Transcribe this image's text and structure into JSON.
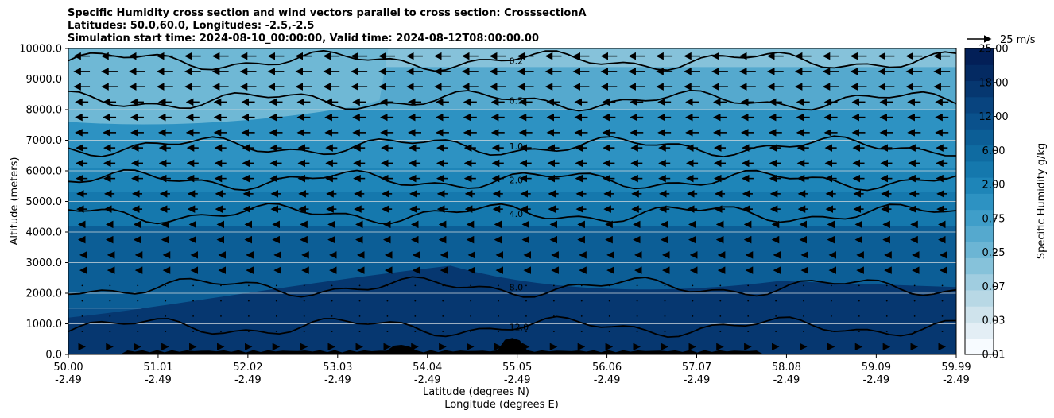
{
  "chart_data": {
    "type": "heatmap",
    "title_lines": [
      "Specific Humidity cross section and wind vectors parallel to cross section: CrosssectionA",
      "Latitudes: 50.0,60.0, Longitudes: -2.5,-2.5",
      "Simulation start time: 2024-08-10_00:00:00, Valid time: 2024-08-12T08:00:00.00"
    ],
    "xlabel_lines": [
      "Latitude (degrees N)",
      "Longitude (degrees E)"
    ],
    "ylabel": "Altitude (meters)",
    "x_latitudes": [
      "50.00",
      "51.01",
      "52.02",
      "53.03",
      "54.04",
      "55.05",
      "56.06",
      "57.07",
      "58.08",
      "59.09",
      "59.99"
    ],
    "x_longitudes": [
      "-2.49",
      "-2.49",
      "-2.49",
      "-2.49",
      "-2.49",
      "-2.49",
      "-2.49",
      "-2.49",
      "-2.49",
      "-2.49",
      "-2.49"
    ],
    "y_ticks": [
      "0.0",
      "1000.0",
      "2000.0",
      "3000.0",
      "4000.0",
      "5000.0",
      "6000.0",
      "7000.0",
      "8000.0",
      "9000.0",
      "10000.0"
    ],
    "ylim": [
      0,
      10000
    ],
    "xlim": [
      50.0,
      59.99
    ],
    "grid": "horizontal",
    "colorbar": {
      "label": "Specific Humidity g/kg",
      "tick_labels": [
        "0.01",
        "0.03",
        "0.07",
        "0.25",
        "0.75",
        "2.00",
        "6.00",
        "12.00",
        "18.00",
        "25.00"
      ],
      "levels": [
        "0.01",
        "0.02",
        "0.03",
        "0.05",
        "0.07",
        "0.1",
        "0.25",
        "0.5",
        "0.75",
        "1.0",
        "2.0",
        "4.0",
        "6.0",
        "8.0",
        "12.0",
        "14.0",
        "18.0",
        "20.0",
        "25.0"
      ],
      "colors": [
        "#f7fbff",
        "#e3eef5",
        "#cfe3ec",
        "#b8d8e5",
        "#a0cde0",
        "#86c2da",
        "#6cb5d4",
        "#55a9ce",
        "#3f9ec9",
        "#2d92c2",
        "#1e85b8",
        "#1578ad",
        "#0f6ba1",
        "#0c5e96",
        "#0a518c",
        "#08447f",
        "#063770",
        "#042a62",
        "#031f57"
      ],
      "position": "right"
    },
    "humidity_bands": [
      {
        "alt": 0,
        "value": "12.0"
      },
      {
        "alt": 1500,
        "value": "8.0"
      },
      {
        "alt": 4200,
        "value": "4.0"
      },
      {
        "alt": 5300,
        "value": "2.0"
      },
      {
        "alt": 6100,
        "value": "1.0"
      },
      {
        "alt": 8000,
        "value": "0.5"
      },
      {
        "alt": 9400,
        "value": "0.2"
      }
    ],
    "contours": [
      {
        "level": "0.2",
        "label": "0.2"
      },
      {
        "level": "0.5",
        "label": "0.5"
      },
      {
        "level": "1.0",
        "label": "1.0"
      },
      {
        "level": "2.0",
        "label": "2.0"
      },
      {
        "level": "4.0",
        "label": "4.0"
      },
      {
        "level": "8.0",
        "label": "8.0"
      },
      {
        "level": "12.0",
        "label": "12.0"
      }
    ],
    "wind": {
      "reference_label": "25 m/s",
      "reference_speed": 25,
      "direction_note": "westward (left-pointing) above ~4000 m; near zero mid-levels; eastward weak near surface",
      "sample_speeds": [
        {
          "alt": 9500,
          "u": -10
        },
        {
          "alt": 8000,
          "u": -8
        },
        {
          "alt": 6500,
          "u": -7
        },
        {
          "alt": 5000,
          "u": -6
        },
        {
          "alt": 4000,
          "u": -4
        },
        {
          "alt": 3000,
          "u": -2
        },
        {
          "alt": 2000,
          "u": -1
        },
        {
          "alt": 1000,
          "u": 1
        },
        {
          "alt": 500,
          "u": 3
        }
      ]
    },
    "terrain": "black terrain silhouette along the bottom axis"
  }
}
